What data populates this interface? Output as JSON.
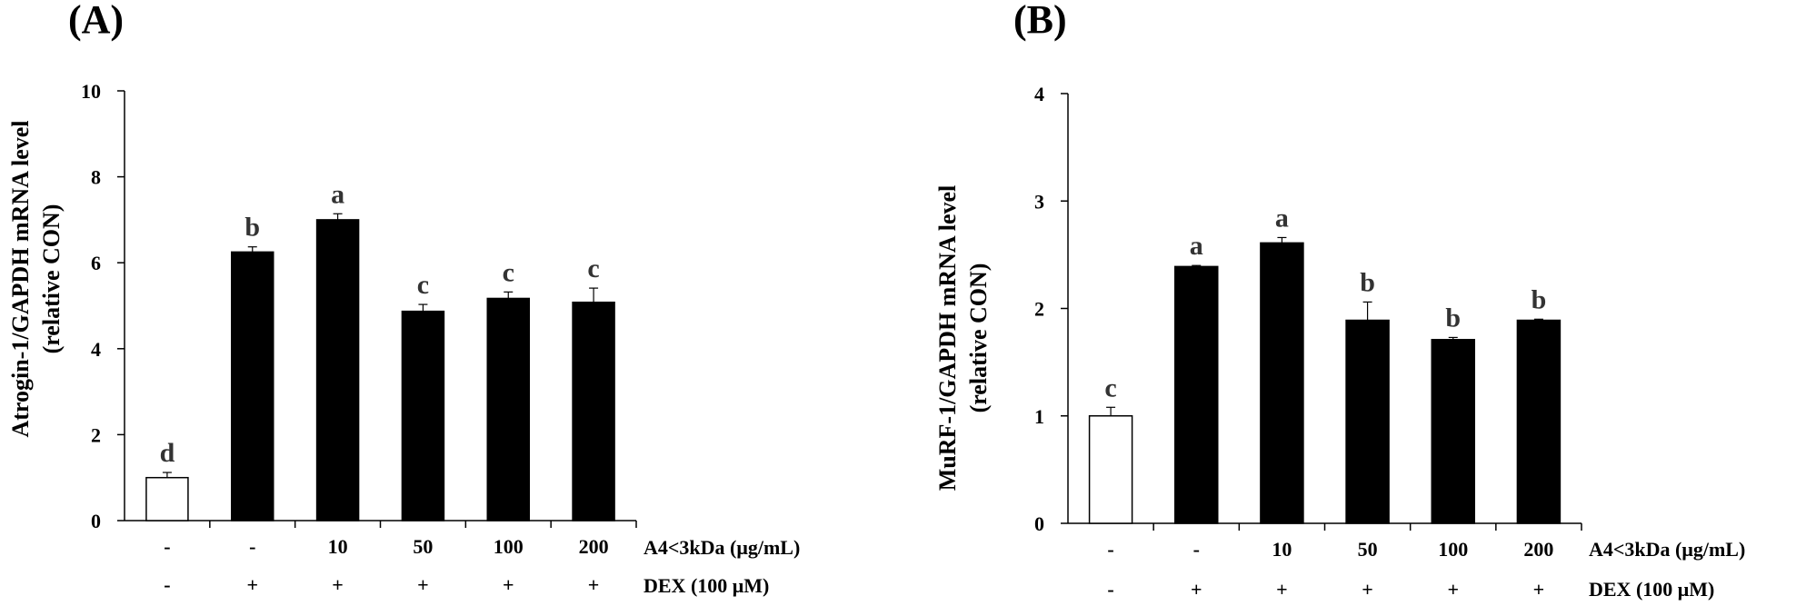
{
  "chart_data": [
    {
      "type": "bar",
      "panel_label": "(A)",
      "ylabel_line1": "Atrogin-1/GAPDH mRNA level",
      "ylabel_line2": "(relative CON)",
      "ylim": [
        0,
        10
      ],
      "yticks": [
        "0",
        "2",
        "4",
        "6",
        "8",
        "10"
      ],
      "values": [
        1.0,
        6.25,
        7.0,
        4.87,
        5.17,
        5.08
      ],
      "errors": [
        0.12,
        0.12,
        0.14,
        0.16,
        0.15,
        0.33
      ],
      "significance": [
        "d",
        "b",
        "a",
        "c",
        "c",
        "c"
      ],
      "bar_fills": [
        "#ffffff",
        "#000000",
        "#000000",
        "#000000",
        "#000000",
        "#000000"
      ],
      "row1_label": "A4<3kDa (μg/mL)",
      "row1": [
        "-",
        "-",
        "10",
        "50",
        "100",
        "200"
      ],
      "row2_label": "DEX (100 μM)",
      "row2": [
        "-",
        "+",
        "+",
        "+",
        "+",
        "+"
      ]
    },
    {
      "type": "bar",
      "panel_label": "(B)",
      "ylabel_line1": "MuRF-1/GAPDH mRNA level",
      "ylabel_line2": "(relative CON)",
      "ylim": [
        0,
        4
      ],
      "yticks": [
        "0",
        "1",
        "2",
        "3",
        "4"
      ],
      "values": [
        1.0,
        2.39,
        2.61,
        1.89,
        1.71,
        1.89
      ],
      "errors": [
        0.08,
        0.01,
        0.05,
        0.17,
        0.02,
        0.01
      ],
      "significance": [
        "c",
        "a",
        "a",
        "b",
        "b",
        "b"
      ],
      "bar_fills": [
        "#ffffff",
        "#000000",
        "#000000",
        "#000000",
        "#000000",
        "#000000"
      ],
      "row1_label": "A4<3kDa (μg/mL)",
      "row1": [
        "-",
        "-",
        "10",
        "50",
        "100",
        "200"
      ],
      "row2_label": "DEX (100 μM)",
      "row2": [
        "-",
        "+",
        "+",
        "+",
        "+",
        "+"
      ]
    }
  ]
}
